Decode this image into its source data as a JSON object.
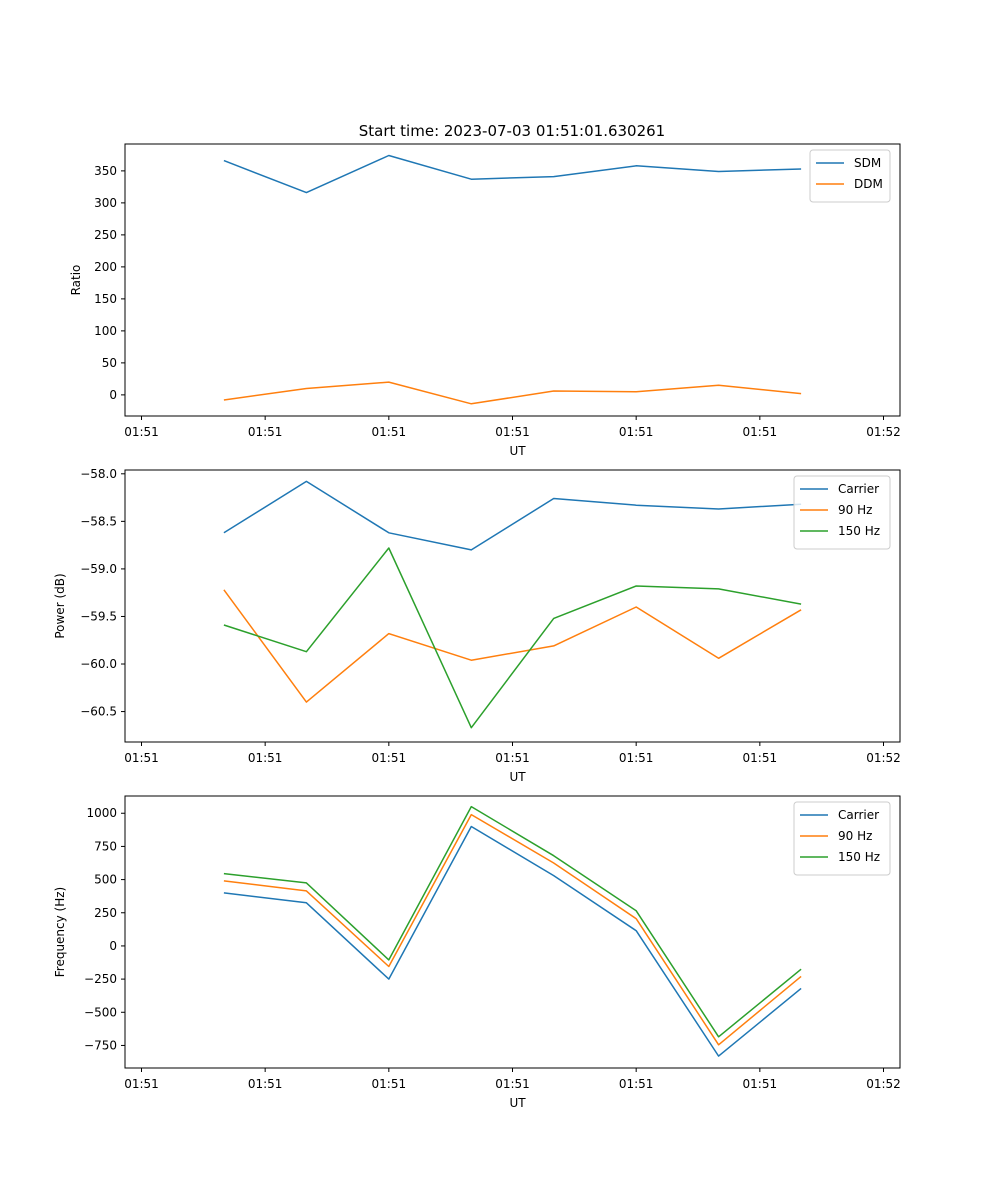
{
  "title": "Start time: 2023-07-03 01:51:01.630261",
  "colors": {
    "blue": "#1f77b4",
    "orange": "#ff7f0e",
    "green": "#2ca02c"
  },
  "chart_data": [
    {
      "type": "line",
      "title": "Start time: 2023-07-03 01:51:01.630261",
      "xlabel": "UT",
      "ylabel": "Ratio",
      "x": [
        0.5,
        1,
        1.5,
        2,
        2.5,
        3,
        3.5,
        4
      ],
      "xlim": [
        -0.1,
        4.6
      ],
      "xticks": [
        0,
        0.75,
        1.5,
        2.25,
        3,
        3.75,
        4.5
      ],
      "xtick_labels": [
        "01:51",
        "01:51",
        "01:51",
        "01:51",
        "01:51",
        "01:51",
        "01:52"
      ],
      "ylim": [
        -33,
        392
      ],
      "yticks": [
        0,
        50,
        100,
        150,
        200,
        250,
        300,
        350
      ],
      "legend_position": "upper right",
      "series": [
        {
          "name": "SDM",
          "color": "#1f77b4",
          "values": [
            366,
            316,
            374,
            337,
            341,
            358,
            349,
            353
          ]
        },
        {
          "name": "DDM",
          "color": "#ff7f0e",
          "values": [
            -8,
            10,
            20,
            -14,
            6,
            5,
            15,
            2
          ]
        }
      ]
    },
    {
      "type": "line",
      "xlabel": "UT",
      "ylabel": "Power (dB)",
      "x": [
        0.5,
        1,
        1.5,
        2,
        2.5,
        3,
        3.5,
        4
      ],
      "xlim": [
        -0.1,
        4.6
      ],
      "xticks": [
        0,
        0.75,
        1.5,
        2.25,
        3,
        3.75,
        4.5
      ],
      "xtick_labels": [
        "01:51",
        "01:51",
        "01:51",
        "01:51",
        "01:51",
        "01:51",
        "01:52"
      ],
      "ylim": [
        -60.82,
        -57.96
      ],
      "yticks": [
        -60.5,
        -60.0,
        -59.5,
        -59.0,
        -58.5,
        -58.0
      ],
      "ytick_labels": [
        "−60.5",
        "−60.0",
        "−59.5",
        "−59.0",
        "−58.5",
        "−58.0"
      ],
      "legend_position": "upper right",
      "series": [
        {
          "name": "Carrier",
          "color": "#1f77b4",
          "values": [
            -58.62,
            -58.08,
            -58.62,
            -58.8,
            -58.26,
            -58.33,
            -58.37,
            -58.32
          ]
        },
        {
          "name": "90 Hz",
          "color": "#ff7f0e",
          "values": [
            -59.22,
            -60.4,
            -59.68,
            -59.96,
            -59.81,
            -59.4,
            -59.94,
            -59.43
          ]
        },
        {
          "name": "150 Hz",
          "color": "#2ca02c",
          "values": [
            -59.59,
            -59.87,
            -58.78,
            -60.67,
            -59.52,
            -59.18,
            -59.21,
            -59.37
          ]
        }
      ]
    },
    {
      "type": "line",
      "xlabel": "UT",
      "ylabel": "Frequency (Hz)",
      "x": [
        0.5,
        1,
        1.5,
        2,
        2.5,
        3,
        3.5,
        4
      ],
      "xlim": [
        -0.1,
        4.6
      ],
      "xticks": [
        0,
        0.75,
        1.5,
        2.25,
        3,
        3.75,
        4.5
      ],
      "xtick_labels": [
        "01:51",
        "01:51",
        "01:51",
        "01:51",
        "01:51",
        "01:51",
        "01:52"
      ],
      "ylim": [
        -920,
        1130
      ],
      "yticks": [
        -750,
        -500,
        -250,
        0,
        250,
        500,
        750,
        1000
      ],
      "ytick_labels": [
        "−750",
        "−500",
        "−250",
        "0",
        "250",
        "500",
        "750",
        "1000"
      ],
      "legend_position": "upper right",
      "series": [
        {
          "name": "Carrier",
          "color": "#1f77b4",
          "values": [
            400,
            325,
            -250,
            900,
            530,
            115,
            -830,
            -320
          ]
        },
        {
          "name": "90 Hz",
          "color": "#ff7f0e",
          "values": [
            490,
            415,
            -155,
            990,
            625,
            205,
            -745,
            -230
          ]
        },
        {
          "name": "150 Hz",
          "color": "#2ca02c",
          "values": [
            545,
            475,
            -105,
            1050,
            680,
            265,
            -685,
            -175
          ]
        }
      ]
    }
  ]
}
